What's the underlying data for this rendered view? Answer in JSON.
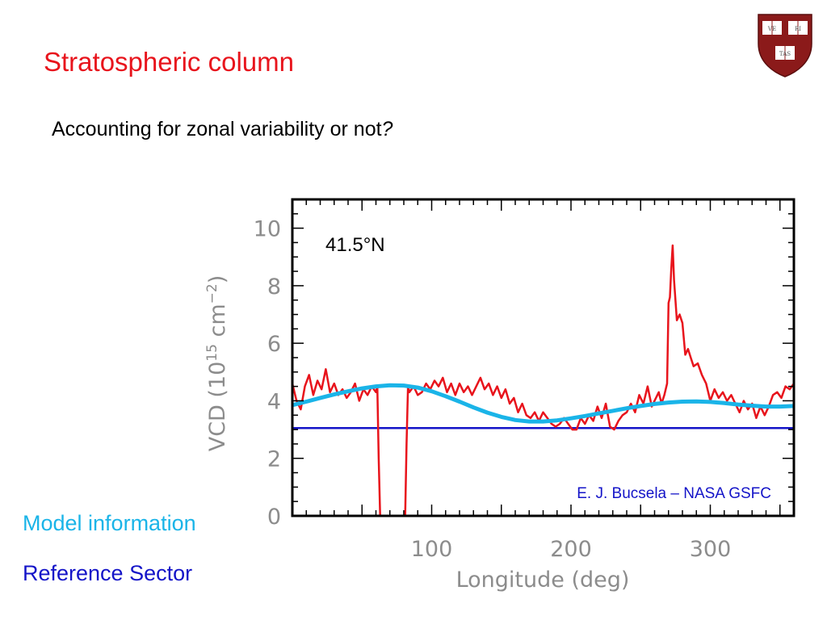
{
  "slide": {
    "title": "Stratospheric column",
    "subtitle": "Accounting for zonal variability or not",
    "subtitle_mark": "?",
    "legend_model": "Model information",
    "legend_reference": "Reference Sector"
  },
  "logo": {
    "name": "harvard-shield-logo",
    "text": [
      "VE",
      "RI",
      "TAS"
    ],
    "color": "#8b1a1a"
  },
  "colors": {
    "title": "#e8141c",
    "observed": "#e8141c",
    "model": "#1ab4e8",
    "reference": "#1414c8",
    "axis_text": "#8c8c8c"
  },
  "chart_data": {
    "type": "line",
    "xlabel": "Longitude (deg)",
    "ylabel_main": "VCD (10",
    "ylabel_exp": "15",
    "ylabel_unit": " cm",
    "ylabel_unit_exp": "−2",
    "ylabel_close": ")",
    "xlim": [
      0,
      360
    ],
    "ylim": [
      0,
      11
    ],
    "x_ticks": [
      100,
      200,
      300
    ],
    "y_ticks": [
      0,
      2,
      4,
      6,
      8,
      10
    ],
    "annotation": "41.5°N",
    "credit": "E. J. Bucsela – NASA GSFC",
    "grid": false,
    "series": [
      {
        "key": "observed",
        "x": [
          0,
          3,
          6,
          9,
          12,
          15,
          18,
          21,
          24,
          27,
          30,
          33,
          36,
          39,
          42,
          45,
          48,
          51,
          54,
          57,
          60,
          61,
          62,
          63,
          66,
          70,
          74,
          78,
          81,
          82,
          83,
          84,
          87,
          90,
          93,
          96,
          99,
          102,
          105,
          108,
          111,
          114,
          117,
          120,
          123,
          126,
          129,
          132,
          135,
          138,
          141,
          144,
          147,
          150,
          153,
          156,
          159,
          162,
          165,
          168,
          171,
          174,
          177,
          180,
          183,
          186,
          189,
          192,
          195,
          198,
          201,
          204,
          207,
          210,
          213,
          216,
          219,
          222,
          225,
          228,
          231,
          234,
          237,
          240,
          243,
          246,
          249,
          252,
          255,
          258,
          261,
          263,
          265,
          267,
          269,
          270,
          271,
          272,
          273,
          274,
          276,
          278,
          280,
          282,
          284,
          286,
          288,
          291,
          294,
          297,
          300,
          303,
          306,
          309,
          312,
          315,
          318,
          321,
          324,
          327,
          330,
          333,
          336,
          339,
          342,
          345,
          348,
          351,
          354,
          357,
          360
        ],
        "y": [
          4.6,
          4.0,
          3.7,
          4.5,
          4.9,
          4.2,
          4.7,
          4.4,
          5.1,
          4.3,
          4.6,
          4.2,
          4.4,
          4.1,
          4.3,
          4.6,
          4.0,
          4.4,
          4.2,
          4.5,
          4.3,
          4.5,
          2.0,
          0.0,
          0.0,
          0.0,
          0.0,
          0.0,
          0.0,
          2.5,
          4.5,
          4.3,
          4.5,
          4.2,
          4.3,
          4.6,
          4.4,
          4.7,
          4.5,
          4.8,
          4.3,
          4.6,
          4.2,
          4.6,
          4.3,
          4.5,
          4.2,
          4.5,
          4.8,
          4.4,
          4.6,
          4.2,
          4.5,
          4.1,
          4.4,
          3.9,
          4.1,
          3.6,
          3.9,
          3.5,
          3.4,
          3.6,
          3.3,
          3.6,
          3.4,
          3.2,
          3.1,
          3.2,
          3.4,
          3.2,
          3.0,
          3.0,
          3.4,
          3.2,
          3.5,
          3.3,
          3.8,
          3.4,
          3.9,
          3.1,
          3.0,
          3.3,
          3.5,
          3.6,
          3.9,
          3.6,
          4.2,
          3.9,
          4.5,
          3.8,
          4.1,
          4.3,
          3.9,
          4.2,
          4.6,
          7.4,
          7.6,
          8.6,
          9.4,
          8.2,
          6.8,
          7.0,
          6.7,
          5.6,
          5.8,
          5.5,
          5.2,
          5.3,
          4.9,
          4.6,
          4.0,
          4.4,
          4.1,
          4.3,
          4.0,
          4.2,
          3.9,
          3.6,
          4.0,
          3.7,
          3.9,
          3.4,
          3.8,
          3.5,
          3.8,
          4.2,
          4.3,
          4.1,
          4.5,
          4.4,
          4.6
        ]
      },
      {
        "key": "model",
        "x": [
          0,
          10,
          20,
          30,
          40,
          50,
          60,
          70,
          80,
          90,
          100,
          110,
          120,
          130,
          140,
          150,
          160,
          170,
          180,
          190,
          200,
          210,
          220,
          230,
          240,
          250,
          260,
          270,
          280,
          290,
          300,
          310,
          320,
          330,
          340,
          350,
          360
        ],
        "y": [
          3.85,
          3.97,
          4.1,
          4.22,
          4.33,
          4.43,
          4.5,
          4.54,
          4.53,
          4.46,
          4.33,
          4.16,
          3.97,
          3.77,
          3.59,
          3.44,
          3.33,
          3.28,
          3.28,
          3.32,
          3.39,
          3.47,
          3.56,
          3.65,
          3.74,
          3.82,
          3.89,
          3.94,
          3.97,
          3.98,
          3.96,
          3.92,
          3.87,
          3.83,
          3.8,
          3.8,
          3.82
        ]
      },
      {
        "key": "reference",
        "x": [
          0,
          360
        ],
        "y": [
          3.05,
          3.05
        ]
      }
    ]
  }
}
